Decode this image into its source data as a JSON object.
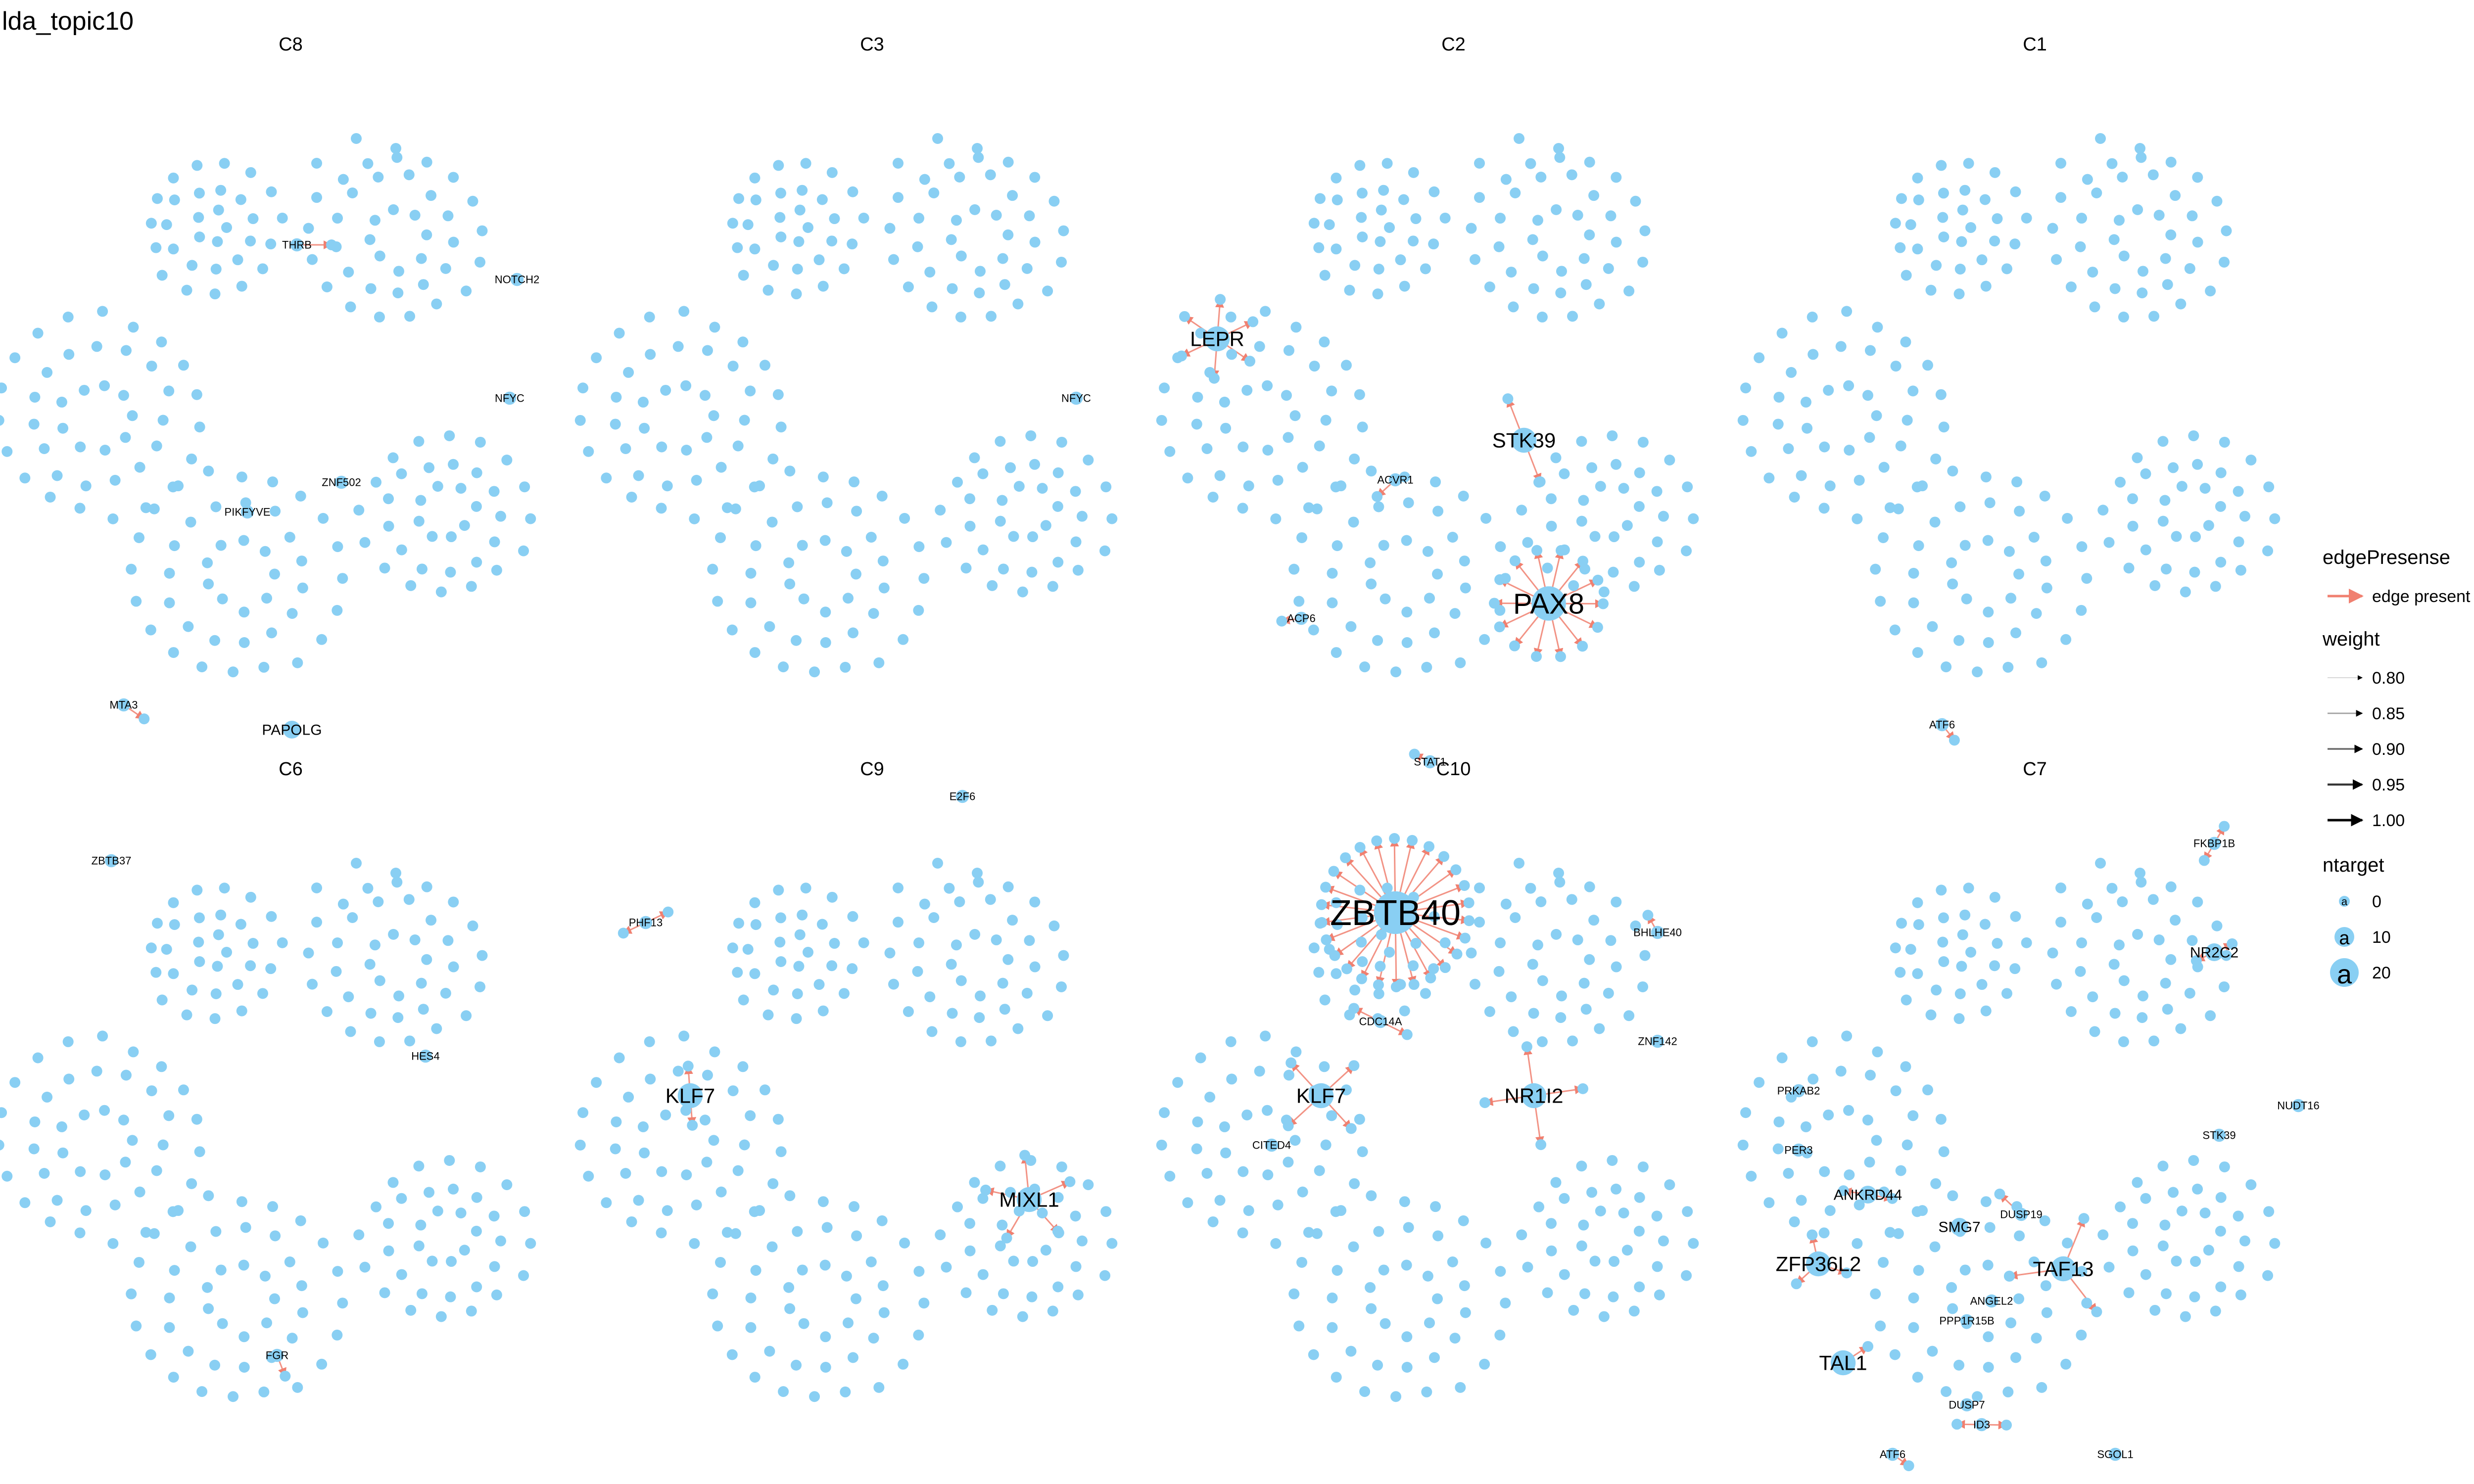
{
  "title": "lda_topic10",
  "colors": {
    "node": "#89CFF3",
    "edge": "#F08070",
    "text": "#000000"
  },
  "panels": [
    {
      "title": "C8",
      "labels": [
        {
          "text": "THRB",
          "size": "small"
        },
        {
          "text": "NOTCH2",
          "size": "small"
        },
        {
          "text": "NFYC",
          "size": "small"
        },
        {
          "text": "ZNF502",
          "size": "small"
        },
        {
          "text": "PIKFYVE",
          "size": "small"
        },
        {
          "text": "MTA3",
          "size": "small"
        },
        {
          "text": "PAPOLG",
          "size": "medium"
        }
      ]
    },
    {
      "title": "C3",
      "labels": [
        {
          "text": "NFYC",
          "size": "small"
        }
      ]
    },
    {
      "title": "C2",
      "labels": [
        {
          "text": "LEPR",
          "size": "large"
        },
        {
          "text": "STK39",
          "size": "large"
        },
        {
          "text": "ACVR1",
          "size": "small"
        },
        {
          "text": "PAX8",
          "size": "xlarge"
        },
        {
          "text": "ACP6",
          "size": "small"
        },
        {
          "text": "STAT1",
          "size": "small"
        }
      ]
    },
    {
      "title": "C1",
      "labels": [
        {
          "text": "ATF6",
          "size": "small"
        }
      ]
    },
    {
      "title": "C6",
      "labels": [
        {
          "text": "ZBTB37",
          "size": "small"
        },
        {
          "text": "HES4",
          "size": "small"
        },
        {
          "text": "FGR",
          "size": "small"
        }
      ]
    },
    {
      "title": "C9",
      "labels": [
        {
          "text": "E2F6",
          "size": "small"
        },
        {
          "text": "PHF13",
          "size": "small"
        },
        {
          "text": "KLF7",
          "size": "large"
        },
        {
          "text": "MIXL1",
          "size": "large"
        }
      ]
    },
    {
      "title": "C10",
      "labels": [
        {
          "text": "ZBTB40",
          "size": "xxlarge"
        },
        {
          "text": "BHLHE40",
          "size": "small"
        },
        {
          "text": "CDC14A",
          "size": "small"
        },
        {
          "text": "ZNF142",
          "size": "small"
        },
        {
          "text": "KLF7",
          "size": "large"
        },
        {
          "text": "NR1I2",
          "size": "large"
        },
        {
          "text": "CITED4",
          "size": "small"
        }
      ]
    },
    {
      "title": "C7",
      "labels": [
        {
          "text": "FKBP1B",
          "size": "small"
        },
        {
          "text": "NR2C2",
          "size": "medium"
        },
        {
          "text": "NUDT16",
          "size": "small"
        },
        {
          "text": "PRKAB2",
          "size": "small"
        },
        {
          "text": "STK39",
          "size": "small"
        },
        {
          "text": "PER3",
          "size": "small"
        },
        {
          "text": "ANKRD44",
          "size": "medium"
        },
        {
          "text": "DUSP19",
          "size": "small"
        },
        {
          "text": "SMG7",
          "size": "medium"
        },
        {
          "text": "ZFP36L2",
          "size": "large"
        },
        {
          "text": "TAF13",
          "size": "large"
        },
        {
          "text": "ANGEL2",
          "size": "small"
        },
        {
          "text": "PPP1R15B",
          "size": "small"
        },
        {
          "text": "TAL1",
          "size": "large"
        },
        {
          "text": "DUSP7",
          "size": "small"
        },
        {
          "text": "ID3",
          "size": "small"
        },
        {
          "text": "SGOL1",
          "size": "small"
        },
        {
          "text": "ATF6",
          "size": "small"
        }
      ]
    }
  ],
  "legend": {
    "edge_title": "edgePresense",
    "edge_label": "edge present",
    "weight_title": "weight",
    "weights": [
      {
        "label": "0.80",
        "level": 0.8
      },
      {
        "label": "0.85",
        "level": 0.85
      },
      {
        "label": "0.90",
        "level": 0.9
      },
      {
        "label": "0.95",
        "level": 0.95
      },
      {
        "label": "1.00",
        "level": 1.0
      }
    ],
    "ntarget_title": "ntarget",
    "ntargets": [
      {
        "label": "0",
        "value": 0,
        "glyph": "a"
      },
      {
        "label": "10",
        "value": 10,
        "glyph": "a"
      },
      {
        "label": "20",
        "value": 20,
        "glyph": "a"
      }
    ]
  }
}
